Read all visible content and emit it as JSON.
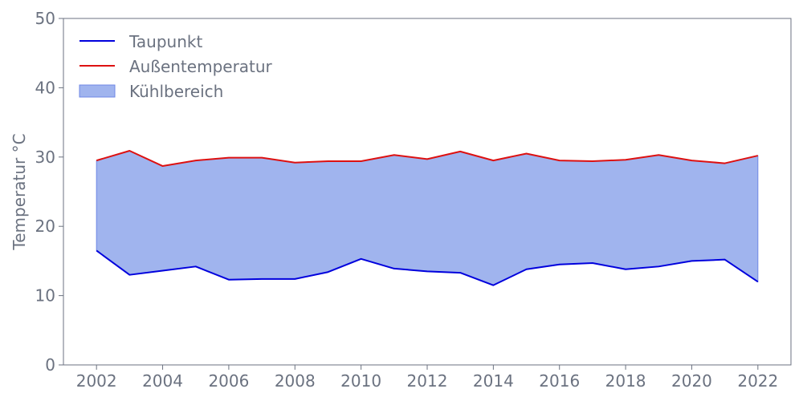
{
  "chart_data": {
    "type": "line",
    "title": "",
    "xlabel": "",
    "ylabel": "Temperatur °C",
    "xlim": [
      2001,
      2023
    ],
    "ylim": [
      0,
      50
    ],
    "xticks": [
      2002,
      2004,
      2006,
      2008,
      2010,
      2012,
      2014,
      2016,
      2018,
      2020,
      2022
    ],
    "yticks": [
      0,
      10,
      20,
      30,
      40,
      50
    ],
    "grid": false,
    "legend_position": "top-left",
    "x": [
      2002,
      2003,
      2004,
      2005,
      2006,
      2007,
      2008,
      2009,
      2010,
      2011,
      2012,
      2013,
      2014,
      2015,
      2016,
      2017,
      2018,
      2019,
      2020,
      2021,
      2022
    ],
    "series": [
      {
        "name": "Taupunkt",
        "color": "#0000dd",
        "values": [
          16.5,
          13.0,
          13.6,
          14.2,
          12.3,
          12.4,
          12.4,
          13.4,
          15.3,
          13.9,
          13.5,
          13.3,
          11.5,
          13.8,
          14.5,
          14.7,
          13.8,
          14.2,
          15.0,
          15.2,
          12.0
        ]
      },
      {
        "name": "Außentemperatur",
        "color": "#dd1111",
        "values": [
          29.5,
          30.9,
          28.7,
          29.5,
          29.9,
          29.9,
          29.2,
          29.4,
          29.4,
          30.3,
          29.7,
          30.8,
          29.5,
          30.5,
          29.5,
          29.4,
          29.6,
          30.3,
          29.5,
          29.1,
          30.2
        ]
      }
    ],
    "fill_between": {
      "name": "Kühlbereich",
      "color": "#a0b4ee",
      "edge_color": "#6f87e6",
      "lower": "Taupunkt",
      "upper": "Außentemperatur"
    }
  }
}
